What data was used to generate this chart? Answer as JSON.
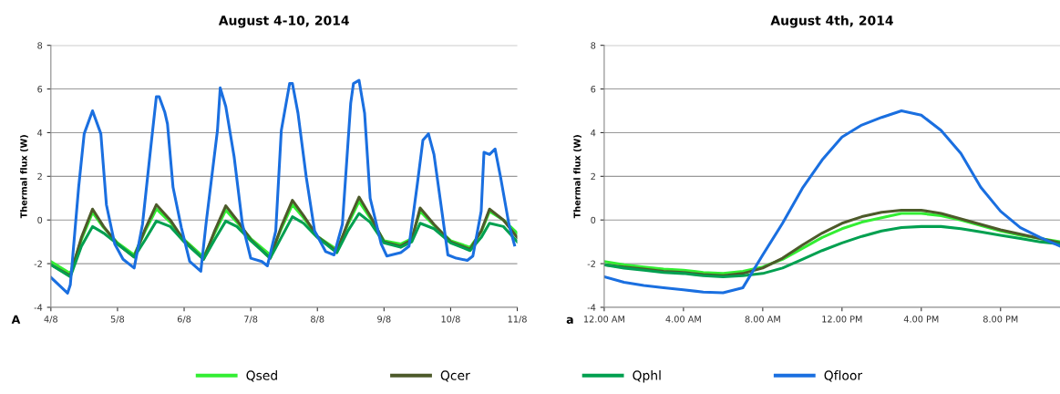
{
  "chart_data": [
    {
      "type": "line",
      "title": "August 4-10, 2014",
      "ylabel": "Thermal flux (W)",
      "annotations": [
        "A"
      ],
      "xlim": [
        "2014-08-04",
        "2014-08-11"
      ],
      "xticks": [
        {
          "value": "2014-08-04",
          "label": "4/8"
        },
        {
          "value": "2014-08-05",
          "label": "5/8"
        },
        {
          "value": "2014-08-06",
          "label": "6/8"
        },
        {
          "value": "2014-08-07",
          "label": "7/8"
        },
        {
          "value": "2014-08-08",
          "label": "8/8"
        },
        {
          "value": "2014-08-09",
          "label": "9/8"
        },
        {
          "value": "2014-08-10",
          "label": "10/8"
        },
        {
          "value": "2014-08-11",
          "label": "11/8"
        }
      ],
      "ylim": [
        -4,
        8
      ],
      "yticks": [
        -4,
        -2,
        0,
        2,
        4,
        6,
        8
      ],
      "grid": "y",
      "legend": "bottom",
      "marker": "none",
      "line_style": "solid",
      "x": [
        "2014-08-04T00:00",
        "2014-08-04T07:00",
        "2014-08-04T11:00",
        "2014-08-04T15:00",
        "2014-08-04T19:00",
        "2014-08-05T00:00",
        "2014-08-05T06:00",
        "2014-08-05T10:00",
        "2014-08-05T14:00",
        "2014-08-05T19:00",
        "2014-08-06T00:00",
        "2014-08-06T07:00",
        "2014-08-06T11:00",
        "2014-08-06T15:00",
        "2014-08-06T19:00",
        "2014-08-07T00:00",
        "2014-08-07T07:00",
        "2014-08-07T11:00",
        "2014-08-07T15:00",
        "2014-08-07T19:00",
        "2014-08-08T00:00",
        "2014-08-08T07:00",
        "2014-08-08T11:00",
        "2014-08-08T15:00",
        "2014-08-08T19:00",
        "2014-08-09T00:00",
        "2014-08-09T06:00",
        "2014-08-09T10:00",
        "2014-08-09T13:00",
        "2014-08-09T18:00",
        "2014-08-10T00:00",
        "2014-08-10T07:00",
        "2014-08-10T11:00",
        "2014-08-10T14:00",
        "2014-08-10T19:00",
        "2014-08-11T00:00"
      ],
      "series": [
        {
          "name": "Qsed",
          "color": "#33ee33",
          "values": [
            -1.9,
            -2.45,
            -0.9,
            0.35,
            -0.35,
            -1.05,
            -1.6,
            -0.5,
            0.5,
            -0.1,
            -0.9,
            -1.7,
            -0.6,
            0.45,
            -0.1,
            -0.85,
            -1.6,
            -0.4,
            0.7,
            0.1,
            -0.75,
            -1.35,
            -0.2,
            0.85,
            0.1,
            -0.95,
            -1.1,
            -0.85,
            0.4,
            -0.25,
            -0.95,
            -1.25,
            -0.55,
            0.4,
            0.0,
            -0.6
          ]
        },
        {
          "name": "Qcer",
          "color": "#4d5a2a",
          "values": [
            -2.05,
            -2.55,
            -0.8,
            0.5,
            -0.3,
            -1.1,
            -1.7,
            -0.4,
            0.7,
            0.0,
            -0.95,
            -1.8,
            -0.5,
            0.65,
            0.0,
            -0.9,
            -1.75,
            -0.3,
            0.9,
            0.2,
            -0.75,
            -1.45,
            -0.1,
            1.05,
            0.2,
            -1.0,
            -1.2,
            -0.9,
            0.55,
            -0.2,
            -1.0,
            -1.35,
            -0.5,
            0.5,
            0.0,
            -0.8
          ]
        },
        {
          "name": "Qphl",
          "color": "#00a050",
          "values": [
            -2.05,
            -2.6,
            -1.2,
            -0.3,
            -0.6,
            -1.1,
            -1.7,
            -0.9,
            -0.05,
            -0.3,
            -1.0,
            -1.8,
            -0.9,
            -0.05,
            -0.3,
            -0.95,
            -1.75,
            -0.8,
            0.15,
            -0.15,
            -0.8,
            -1.5,
            -0.5,
            0.3,
            -0.1,
            -1.05,
            -1.25,
            -1.0,
            -0.15,
            -0.4,
            -1.05,
            -1.4,
            -0.8,
            -0.15,
            -0.3,
            -1.0
          ]
        },
        {
          "name": "Qfloor",
          "color": "#1a6fe0",
          "x": [
            "2014-08-04T00:00",
            "2014-08-04T06:00",
            "2014-08-04T07:00",
            "2014-08-04T10:00",
            "2014-08-04T12:00",
            "2014-08-04T15:00",
            "2014-08-04T18:00",
            "2014-08-04T20:00",
            "2014-08-04T23:00",
            "2014-08-05T02:00",
            "2014-08-05T06:00",
            "2014-08-05T09:00",
            "2014-08-05T12:00",
            "2014-08-05T14:00",
            "2014-08-05T15:00",
            "2014-08-05T17:00",
            "2014-08-05T18:00",
            "2014-08-05T20:00",
            "2014-08-05T23:00",
            "2014-08-06T02:00",
            "2014-08-06T06:00",
            "2014-08-06T08:00",
            "2014-08-06T12:00",
            "2014-08-06T13:00",
            "2014-08-06T15:00",
            "2014-08-06T18:00",
            "2014-08-06T21:00",
            "2014-08-07T00:00",
            "2014-08-07T04:00",
            "2014-08-07T06:00",
            "2014-08-07T09:00",
            "2014-08-07T11:00",
            "2014-08-07T14:00",
            "2014-08-07T15:00",
            "2014-08-07T17:00",
            "2014-08-07T20:00",
            "2014-08-07T23:00",
            "2014-08-08T03:00",
            "2014-08-08T06:00",
            "2014-08-08T09:00",
            "2014-08-08T12:00",
            "2014-08-08T13:00",
            "2014-08-08T15:00",
            "2014-08-08T17:00",
            "2014-08-08T19:00",
            "2014-08-08T23:00",
            "2014-08-09T01:00",
            "2014-08-09T06:00",
            "2014-08-09T09:00",
            "2014-08-09T12:00",
            "2014-08-09T14:00",
            "2014-08-09T16:00",
            "2014-08-09T18:00",
            "2014-08-09T21:00",
            "2014-08-09T23:00",
            "2014-08-10T02:00",
            "2014-08-10T06:00",
            "2014-08-10T08:00",
            "2014-08-10T11:00",
            "2014-08-10T12:00",
            "2014-08-10T14:00",
            "2014-08-10T16:00",
            "2014-08-10T18:00",
            "2014-08-10T21:00",
            "2014-08-10T23:00"
          ],
          "values": [
            -2.63,
            -3.35,
            -2.97,
            1.5,
            3.95,
            5.0,
            3.95,
            0.7,
            -1.1,
            -1.8,
            -2.2,
            -0.2,
            3.35,
            5.65,
            5.65,
            4.95,
            4.4,
            1.5,
            -0.35,
            -1.9,
            -2.35,
            -0.05,
            4.1,
            6.05,
            5.2,
            2.9,
            -0.2,
            -1.75,
            -1.9,
            -2.1,
            -0.5,
            4.1,
            6.25,
            6.25,
            4.9,
            1.95,
            -0.5,
            -1.45,
            -1.6,
            -0.2,
            5.35,
            6.25,
            6.4,
            4.9,
            1.0,
            -1.1,
            -1.65,
            -1.5,
            -1.2,
            1.65,
            3.65,
            3.95,
            3.0,
            0.25,
            -1.6,
            -1.75,
            -1.85,
            -1.65,
            0.4,
            3.1,
            3.0,
            3.25,
            1.95,
            -0.2,
            -1.15
          ]
        }
      ]
    },
    {
      "type": "line",
      "title": "August 4th, 2014",
      "ylabel": "Thermal flux (W)",
      "annotations": [
        "a"
      ],
      "xlim": [
        "2014-08-04T00:00",
        "2014-08-04T23:00"
      ],
      "xticks": [
        {
          "value": "2014-08-04T00:00",
          "label": "12.00 AM"
        },
        {
          "value": "2014-08-04T04:00",
          "label": "4.00 AM"
        },
        {
          "value": "2014-08-04T08:00",
          "label": "8.00 AM"
        },
        {
          "value": "2014-08-04T12:00",
          "label": "12.00 PM"
        },
        {
          "value": "2014-08-04T16:00",
          "label": "4.00 PM"
        },
        {
          "value": "2014-08-04T20:00",
          "label": "8.00 PM"
        }
      ],
      "ylim": [
        -4,
        8
      ],
      "yticks": [
        -4,
        -2,
        0,
        2,
        4,
        6,
        8
      ],
      "grid": "y",
      "marker": "none",
      "line_style": "solid",
      "x": [
        "2014-08-04T00:00",
        "2014-08-04T01:00",
        "2014-08-04T02:00",
        "2014-08-04T03:00",
        "2014-08-04T04:00",
        "2014-08-04T05:00",
        "2014-08-04T06:00",
        "2014-08-04T07:00",
        "2014-08-04T08:00",
        "2014-08-04T09:00",
        "2014-08-04T10:00",
        "2014-08-04T11:00",
        "2014-08-04T12:00",
        "2014-08-04T13:00",
        "2014-08-04T14:00",
        "2014-08-04T15:00",
        "2014-08-04T16:00",
        "2014-08-04T17:00",
        "2014-08-04T18:00",
        "2014-08-04T19:00",
        "2014-08-04T20:00",
        "2014-08-04T21:00",
        "2014-08-04T22:00",
        "2014-08-04T23:00"
      ],
      "series": [
        {
          "color": "#33ee33",
          "values": [
            -1.9,
            -2.05,
            -2.15,
            -2.25,
            -2.3,
            -2.4,
            -2.45,
            -2.35,
            -2.15,
            -1.8,
            -1.3,
            -0.8,
            -0.4,
            -0.1,
            0.1,
            0.3,
            0.3,
            0.2,
            0.0,
            -0.25,
            -0.5,
            -0.7,
            -0.85,
            -1.0
          ]
        },
        {
          "color": "#4d5a2a",
          "values": [
            -2.05,
            -2.15,
            -2.25,
            -2.35,
            -2.4,
            -2.5,
            -2.55,
            -2.45,
            -2.2,
            -1.75,
            -1.15,
            -0.6,
            -0.15,
            0.15,
            0.35,
            0.45,
            0.45,
            0.3,
            0.05,
            -0.2,
            -0.45,
            -0.65,
            -0.85,
            -1.05
          ]
        },
        {
          "color": "#00a050",
          "values": [
            -2.05,
            -2.2,
            -2.3,
            -2.4,
            -2.45,
            -2.55,
            -2.6,
            -2.55,
            -2.45,
            -2.2,
            -1.8,
            -1.4,
            -1.05,
            -0.75,
            -0.5,
            -0.35,
            -0.3,
            -0.3,
            -0.4,
            -0.55,
            -0.7,
            -0.85,
            -1.0,
            -1.1
          ]
        },
        {
          "color": "#1a6fe0",
          "values": [
            -2.6,
            -2.85,
            -3.0,
            -3.1,
            -3.2,
            -3.3,
            -3.33,
            -3.1,
            -1.6,
            -0.15,
            1.45,
            2.75,
            3.8,
            4.35,
            4.7,
            5.0,
            4.8,
            4.1,
            3.05,
            1.5,
            0.4,
            -0.35,
            -0.8,
            -1.2
          ]
        }
      ]
    }
  ]
}
